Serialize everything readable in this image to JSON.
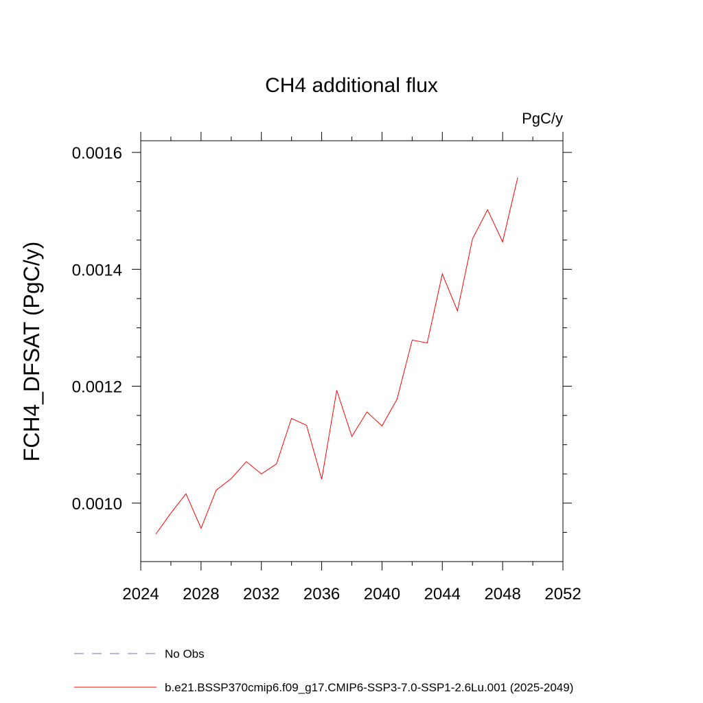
{
  "chart_data": {
    "type": "line",
    "title": "CH4 additional flux",
    "units": "PgC/y",
    "ylabel": "FCH4_DFSAT  (PgC/y)",
    "xlabel": "",
    "xlim": [
      2024,
      2052
    ],
    "ylim": [
      0.0009,
      0.00162
    ],
    "x_ticks": [
      2024,
      2028,
      2032,
      2036,
      2040,
      2044,
      2048,
      2052
    ],
    "x_tick_labels": [
      "2024",
      "2028",
      "2032",
      "2036",
      "2040",
      "2044",
      "2048",
      "2052"
    ],
    "x_minor_step": 2,
    "y_ticks": [
      0.001,
      0.0012,
      0.0014,
      0.0016
    ],
    "y_tick_labels": [
      "0.0010",
      "0.0012",
      "0.0014",
      "0.0016"
    ],
    "y_minor_step": 5e-05,
    "grid": false,
    "legend_position": "bottom",
    "series": [
      {
        "name": "b.e21.BSSP370cmip6.f09_g17.CMIP6-SSP3-7.0-SSP1-2.6Lu.001 (2025-2049)",
        "color": "#ff0000",
        "style": "solid",
        "x": [
          2025,
          2026,
          2027,
          2028,
          2029,
          2030,
          2031,
          2032,
          2033,
          2034,
          2035,
          2036,
          2037,
          2038,
          2039,
          2040,
          2041,
          2042,
          2043,
          2044,
          2045,
          2046,
          2047,
          2048,
          2049
        ],
        "y": [
          0.000947,
          0.000983,
          0.001016,
          0.000957,
          0.001022,
          0.001042,
          0.001071,
          0.00105,
          0.001067,
          0.001145,
          0.001133,
          0.001041,
          0.001193,
          0.001114,
          0.001156,
          0.001132,
          0.001178,
          0.001279,
          0.001274,
          0.001392,
          0.001329,
          0.001452,
          0.001502,
          0.001447,
          0.001557
        ]
      }
    ],
    "legend": [
      {
        "label": "No Obs",
        "color": "#7070c0",
        "style": "dashed"
      },
      {
        "label": "b.e21.BSSP370cmip6.f09_g17.CMIP6-SSP3-7.0-SSP1-2.6Lu.001 (2025-2049)",
        "color": "#ff0000",
        "style": "solid"
      }
    ]
  }
}
